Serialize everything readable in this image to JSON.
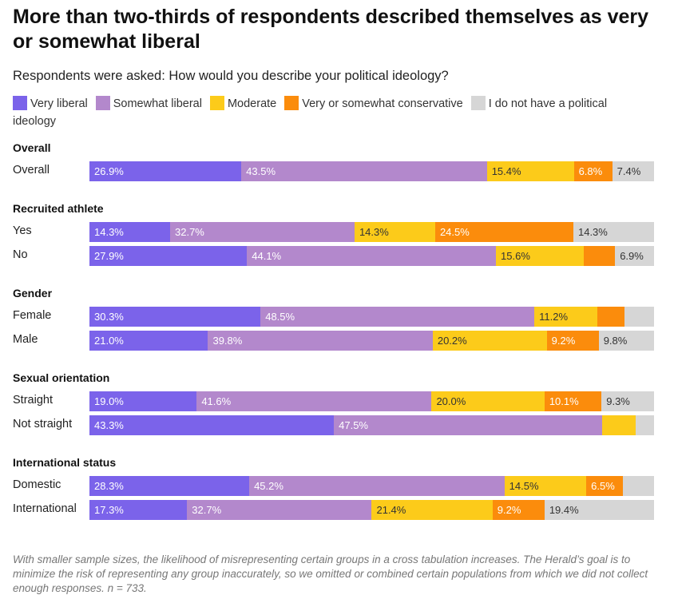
{
  "header": {
    "title": "More than two-thirds of respondents described themselves as very or somewhat liberal",
    "subtitle": "Respondents were asked: How would you describe your political ideology?"
  },
  "colors": {
    "very_liberal": "#7b63ea",
    "somewhat_liberal": "#b388cc",
    "moderate": "#fccb1a",
    "conservative": "#fb8c0c",
    "no_ideology": "#d6d6d6"
  },
  "chart_data": {
    "type": "bar",
    "orientation": "horizontal",
    "stacked": true,
    "percent_stacked": true,
    "title": "More than two-thirds of respondents described themselves as very or somewhat liberal",
    "subtitle": "Respondents were asked: How would you describe your political ideology?",
    "legend": [
      {
        "key": "very_liberal",
        "label": "Very liberal"
      },
      {
        "key": "somewhat_liberal",
        "label": "Somewhat liberal"
      },
      {
        "key": "moderate",
        "label": "Moderate"
      },
      {
        "key": "conservative",
        "label": "Very or somewhat conservative"
      },
      {
        "key": "no_ideology",
        "label": "I do not have a political ideology"
      }
    ],
    "legend_position": "top",
    "groups": [
      {
        "name": "Overall",
        "rows": [
          {
            "label": "Overall",
            "values": [
              26.9,
              43.5,
              15.4,
              6.8,
              7.4
            ],
            "labels": [
              "26.9%",
              "43.5%",
              "15.4%",
              "6.8%",
              "7.4%"
            ]
          }
        ]
      },
      {
        "name": "Recruited athlete",
        "rows": [
          {
            "label": "Yes",
            "values": [
              14.3,
              32.7,
              14.3,
              24.5,
              14.3
            ],
            "labels": [
              "14.3%",
              "32.7%",
              "14.3%",
              "24.5%",
              "14.3%"
            ]
          },
          {
            "label": "No",
            "values": [
              27.9,
              44.1,
              15.6,
              5.5,
              6.9
            ],
            "labels": [
              "27.9%",
              "44.1%",
              "15.6%",
              "",
              "6.9%"
            ]
          }
        ]
      },
      {
        "name": "Gender",
        "rows": [
          {
            "label": "Female",
            "values": [
              30.3,
              48.5,
              11.2,
              4.8,
              5.2
            ],
            "labels": [
              "30.3%",
              "48.5%",
              "11.2%",
              "",
              ""
            ]
          },
          {
            "label": "Male",
            "values": [
              21.0,
              39.8,
              20.2,
              9.2,
              9.8
            ],
            "labels": [
              "21.0%",
              "39.8%",
              "20.2%",
              "9.2%",
              "9.8%"
            ]
          }
        ]
      },
      {
        "name": "Sexual orientation",
        "rows": [
          {
            "label": "Straight",
            "values": [
              19.0,
              41.6,
              20.0,
              10.1,
              9.3
            ],
            "labels": [
              "19.0%",
              "41.6%",
              "20.0%",
              "10.1%",
              "9.3%"
            ]
          },
          {
            "label": "Not straight",
            "values": [
              43.3,
              47.5,
              5.9,
              0,
              3.3
            ],
            "labels": [
              "43.3%",
              "47.5%",
              "",
              "",
              ""
            ]
          }
        ]
      },
      {
        "name": "International status",
        "rows": [
          {
            "label": "Domestic",
            "values": [
              28.3,
              45.2,
              14.5,
              6.5,
              5.5
            ],
            "labels": [
              "28.3%",
              "45.2%",
              "14.5%",
              "6.5%",
              ""
            ]
          },
          {
            "label": "International",
            "values": [
              17.3,
              32.7,
              21.4,
              9.2,
              19.4
            ],
            "labels": [
              "17.3%",
              "32.7%",
              "21.4%",
              "9.2%",
              "19.4%"
            ]
          }
        ]
      }
    ],
    "xlim": [
      0,
      100
    ]
  },
  "footnote": "With smaller sample sizes, the likelihood of misrepresenting certain groups in a cross tabulation increases. The Herald’s goal is to minimize the risk of representing any group inaccurately, so we omitted or combined certain populations from which we did not collect enough responses. n = 733."
}
